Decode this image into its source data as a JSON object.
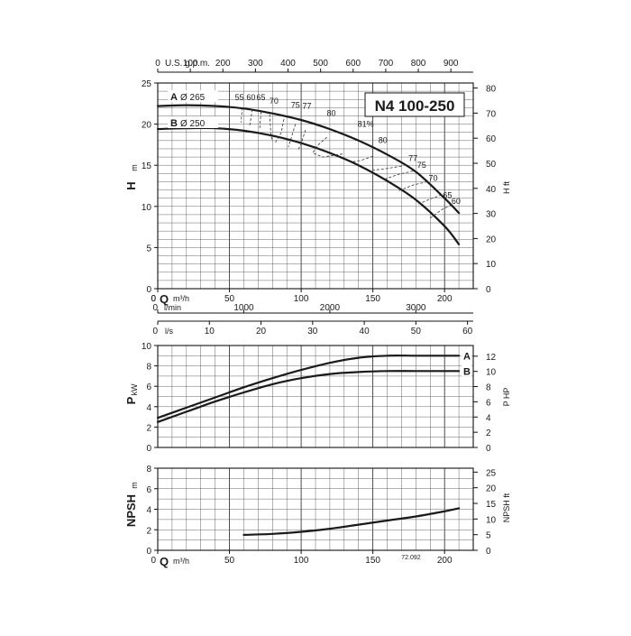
{
  "model": "N4 100-250",
  "figure_code": "72.092",
  "chart_data": [
    {
      "type": "line",
      "name": "head",
      "xlabel": "Q",
      "xunit": "m³/h",
      "ylabel": "H",
      "yunit": "m",
      "y2label": "H",
      "y2unit": "ft",
      "xlim": [
        0,
        220
      ],
      "ylim": [
        0,
        25
      ],
      "y2lim": [
        0,
        82
      ],
      "xticks": [
        0,
        50,
        100,
        150,
        200
      ],
      "yticks": [
        0,
        5,
        10,
        15,
        20,
        25
      ],
      "y2ticks": [
        0,
        10,
        20,
        30,
        40,
        50,
        60,
        70,
        80
      ],
      "top_axis": {
        "label": "U.S. g.p.m.",
        "ticks": [
          "0",
          "100",
          "200",
          "300",
          "400",
          "500",
          "600",
          "700",
          "800",
          "900"
        ],
        "factor": 0.2271
      },
      "grid": true,
      "series": [
        {
          "letter": "A",
          "diameter": "Ø 265",
          "x": [
            0,
            20,
            40,
            60,
            80,
            100,
            120,
            140,
            160,
            180,
            200,
            210
          ],
          "y": [
            22.2,
            22.3,
            22.2,
            21.9,
            21.3,
            20.5,
            19.4,
            18.0,
            16.3,
            14.2,
            11.0,
            9.2
          ]
        },
        {
          "letter": "B",
          "diameter": "Ø 250",
          "x": [
            0,
            20,
            40,
            60,
            80,
            100,
            120,
            140,
            160,
            180,
            200,
            210
          ],
          "y": [
            19.4,
            19.5,
            19.5,
            19.2,
            18.6,
            17.7,
            16.5,
            15.0,
            13.1,
            10.8,
            7.6,
            5.4
          ]
        }
      ],
      "efficiency_labels": [
        "55",
        "60",
        "65",
        "70",
        "75",
        "77",
        "80",
        "81%",
        "80",
        "77",
        "75",
        "70",
        "65",
        "60"
      ]
    },
    {
      "type": "line",
      "name": "flow-scales",
      "scales": [
        {
          "label": "l/min",
          "ticks": [
            "0",
            "1000",
            "2000",
            "3000"
          ]
        },
        {
          "label": "l/s",
          "ticks": [
            "0",
            "10",
            "20",
            "30",
            "40",
            "50",
            "60"
          ]
        }
      ]
    },
    {
      "type": "line",
      "name": "power",
      "ylabel": "P",
      "yunit": "kW",
      "y2label": "P HP",
      "xlim": [
        0,
        220
      ],
      "ylim": [
        0,
        10
      ],
      "y2lim": [
        0,
        13.4
      ],
      "yticks": [
        0,
        2,
        4,
        6,
        8,
        10
      ],
      "y2ticks": [
        0,
        2,
        4,
        6,
        8,
        10,
        12
      ],
      "grid": true,
      "series": [
        {
          "letter": "A",
          "x": [
            0,
            20,
            40,
            60,
            80,
            100,
            120,
            140,
            160,
            180,
            200,
            210
          ],
          "y": [
            2.9,
            3.9,
            4.9,
            5.9,
            6.8,
            7.6,
            8.3,
            8.8,
            9.0,
            9.0,
            9.0,
            9.0
          ]
        },
        {
          "letter": "B",
          "x": [
            0,
            20,
            40,
            60,
            80,
            100,
            120,
            140,
            160,
            180,
            200,
            210
          ],
          "y": [
            2.5,
            3.5,
            4.5,
            5.4,
            6.2,
            6.8,
            7.2,
            7.4,
            7.5,
            7.5,
            7.5,
            7.5
          ]
        }
      ]
    },
    {
      "type": "line",
      "name": "npsh",
      "ylabel": "NPSH",
      "yunit": "m",
      "y2label": "NPSH ft",
      "xlabel": "Q",
      "xunit": "m³/h",
      "xlim": [
        0,
        220
      ],
      "ylim": [
        0,
        8
      ],
      "y2lim": [
        0,
        26.25
      ],
      "xticks": [
        0,
        50,
        100,
        150,
        200
      ],
      "yticks": [
        0,
        2,
        4,
        6,
        8
      ],
      "y2ticks": [
        0,
        5,
        10,
        15,
        20,
        25
      ],
      "grid": true,
      "series": [
        {
          "x": [
            60,
            80,
            100,
            120,
            140,
            160,
            180,
            200,
            210
          ],
          "y": [
            1.5,
            1.6,
            1.8,
            2.1,
            2.5,
            2.9,
            3.3,
            3.8,
            4.1
          ]
        }
      ]
    }
  ]
}
